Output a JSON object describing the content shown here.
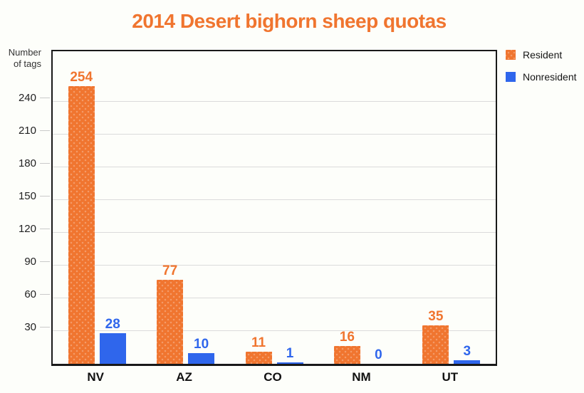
{
  "title": "2014 Desert bighorn sheep quotas",
  "colors": {
    "resident": "#F0752F",
    "nonresident": "#2F66EC",
    "title": "#F0752F",
    "background": "#FDFEFA",
    "grid": "#DBDBDB",
    "axis": "#191919"
  },
  "y_axis": {
    "title": "Number of tags",
    "ticks": [
      30,
      60,
      90,
      120,
      150,
      180,
      210,
      240
    ]
  },
  "legend": [
    {
      "label": "Resident",
      "color": "#F0752F",
      "dotted": true
    },
    {
      "label": "Nonresident",
      "color": "#2F66EC",
      "dotted": false
    }
  ],
  "chart_data": {
    "type": "bar",
    "categories": [
      "NV",
      "AZ",
      "CO",
      "NM",
      "UT"
    ],
    "series": [
      {
        "name": "Resident",
        "color": "#F0752F",
        "values": [
          254,
          77,
          11,
          16,
          35
        ]
      },
      {
        "name": "Nonresident",
        "color": "#2F66EC",
        "values": [
          28,
          10,
          1,
          0,
          3
        ]
      }
    ],
    "title": "2014 Desert bighorn sheep quotas",
    "xlabel": "",
    "ylabel": "Number of tags",
    "ylim": [
      0,
      283
    ],
    "grid": true,
    "grid_interval": 30,
    "value_labels": true,
    "legend_position": "top-right"
  }
}
